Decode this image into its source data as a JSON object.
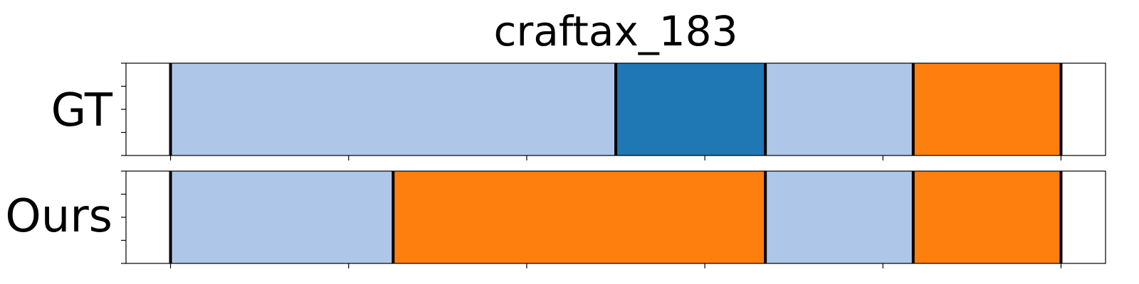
{
  "chart_data": {
    "type": "bar",
    "title": "craftax_183",
    "xlim": [
      0,
      55
    ],
    "boundary_color": "#000000",
    "rows": [
      {
        "label": "GT",
        "segments": [
          {
            "start": 2.5,
            "end": 27.5,
            "color": "#aec7e8"
          },
          {
            "start": 27.5,
            "end": 35.9,
            "color": "#1f77b4"
          },
          {
            "start": 35.9,
            "end": 44.2,
            "color": "#aec7e8"
          },
          {
            "start": 44.2,
            "end": 52.5,
            "color": "#ff7f0e"
          }
        ]
      },
      {
        "label": "Ours",
        "segments": [
          {
            "start": 2.5,
            "end": 15.0,
            "color": "#aec7e8"
          },
          {
            "start": 15.0,
            "end": 35.9,
            "color": "#ff7f0e"
          },
          {
            "start": 35.9,
            "end": 44.2,
            "color": "#aec7e8"
          },
          {
            "start": 44.2,
            "end": 52.5,
            "color": "#ff7f0e"
          }
        ]
      }
    ],
    "x_ticks": [
      2.5,
      12.5,
      22.5,
      32.5,
      42.5,
      52.5
    ],
    "y_ticks_per_row": 5,
    "tick_labels_shown": false,
    "grid": false,
    "legend": "none"
  }
}
